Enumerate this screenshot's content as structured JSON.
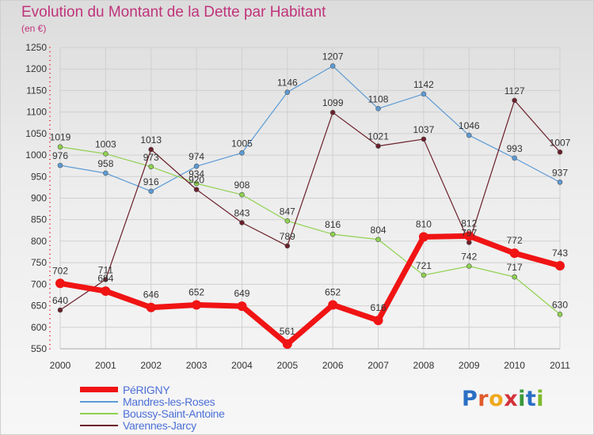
{
  "header": {
    "title": "Evolution du Montant de la Dette par Habitant",
    "subtitle": "(en €)"
  },
  "logo": {
    "text": "Proxiti",
    "letters": [
      {
        "ch": "P",
        "color": "#2b6fc4"
      },
      {
        "ch": "r",
        "color": "#e05a2a"
      },
      {
        "ch": "o",
        "color": "#f0a81e"
      },
      {
        "ch": "x",
        "color": "#d4313a"
      },
      {
        "ch": "i",
        "color": "#3a9a3a"
      },
      {
        "ch": "t",
        "color": "#2b6fc4"
      },
      {
        "ch": "i",
        "color": "#7dbb2a"
      }
    ]
  },
  "chart_data": {
    "type": "line",
    "title": "Evolution du Montant de la Dette par Habitant",
    "subtitle": "(en €)",
    "x": [
      "2000",
      "2001",
      "2002",
      "2003",
      "2004",
      "2005",
      "2006",
      "2007",
      "2008",
      "2009",
      "2010",
      "2011"
    ],
    "ylim": [
      550,
      1250
    ],
    "yticks": [
      550,
      600,
      650,
      700,
      750,
      800,
      850,
      900,
      950,
      1000,
      1050,
      1100,
      1150,
      1200,
      1250
    ],
    "grid": true,
    "legend_position": "bottom-left",
    "series": [
      {
        "name": "PéRIGNY",
        "color": "#f01414",
        "values": [
          702,
          684,
          646,
          652,
          649,
          561,
          652,
          616,
          810,
          812,
          772,
          743
        ]
      },
      {
        "name": "Mandres-les-Roses",
        "color": "#5b9bd5",
        "values": [
          976,
          958,
          916,
          974,
          1005,
          1146,
          1207,
          1108,
          1142,
          1046,
          993,
          937
        ]
      },
      {
        "name": "Boussy-Saint-Antoine",
        "color": "#8fd14f",
        "values": [
          1019,
          1003,
          973,
          934,
          908,
          847,
          816,
          804,
          721,
          742,
          717,
          630
        ]
      },
      {
        "name": "Varennes-Jarcy",
        "color": "#6b1f2a",
        "values": [
          640,
          711,
          1013,
          920,
          843,
          789,
          1099,
          1021,
          1037,
          797,
          1127,
          1007
        ]
      }
    ]
  }
}
